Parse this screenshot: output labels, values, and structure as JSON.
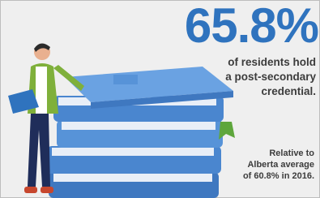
{
  "stat": {
    "value": "65.8%",
    "description_lines": [
      "of residents hold",
      "a post-secondary",
      "credential."
    ]
  },
  "note_lines": [
    "Relative to",
    "Alberta average",
    "of 60.8% in 2016."
  ]
}
